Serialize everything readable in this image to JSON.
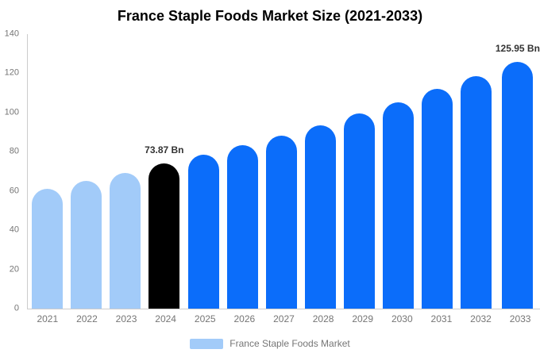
{
  "title": "France Staple Foods Market Size (2021-2033)",
  "legend": {
    "label": "France Staple Foods Market"
  },
  "chart_data": {
    "type": "bar",
    "title": "France Staple Foods Market Size (2021-2033)",
    "categories": [
      "2021",
      "2022",
      "2023",
      "2024",
      "2025",
      "2026",
      "2027",
      "2028",
      "2029",
      "2030",
      "2031",
      "2032",
      "2033"
    ],
    "values": [
      61.2,
      65.1,
      69.2,
      73.87,
      78.4,
      83.2,
      88.2,
      93.6,
      99.4,
      105.4,
      111.9,
      118.7,
      125.95
    ],
    "unit": "Bn",
    "xlabel": "",
    "ylabel": "",
    "ylim": [
      0,
      140
    ],
    "yticks": [
      0,
      20,
      40,
      60,
      80,
      100,
      120,
      140
    ],
    "grid": false,
    "bar_roles": [
      "historical",
      "historical",
      "historical",
      "base-year",
      "forecast",
      "forecast",
      "forecast",
      "forecast",
      "forecast",
      "forecast",
      "forecast",
      "forecast",
      "forecast"
    ],
    "colors": {
      "historical": "#A2CBF9",
      "base-year": "#000000",
      "forecast": "#0B6DFA"
    },
    "axis_line_color": "#cccccc",
    "tick_label_color": "#757575",
    "annotations": [
      {
        "index": 3,
        "text": "73.87 Bn"
      },
      {
        "index": 12,
        "text": "125.95 Bn"
      }
    ],
    "legend": {
      "position": "bottom",
      "entries": [
        {
          "label": "France Staple Foods Market",
          "color": "#A2CBF9"
        }
      ]
    }
  }
}
